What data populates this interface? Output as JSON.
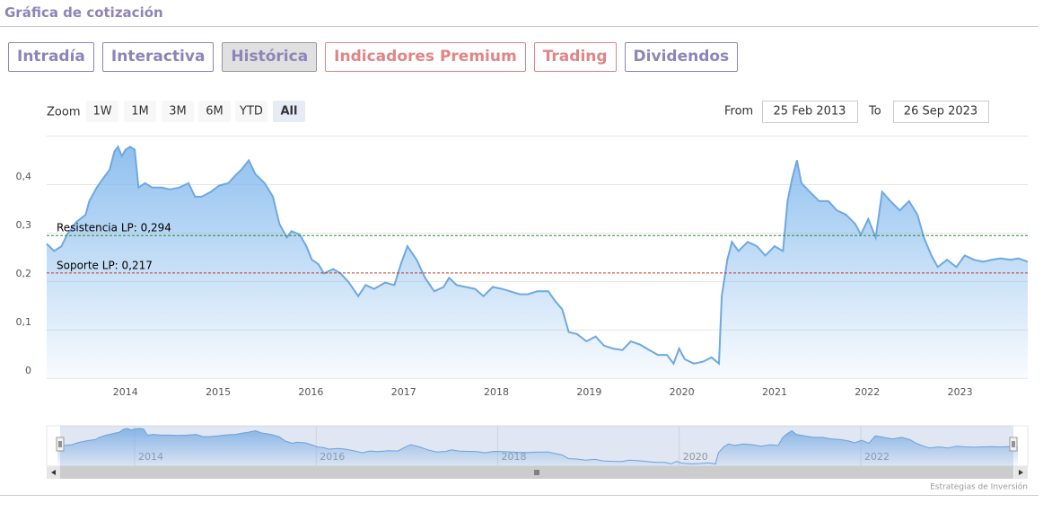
{
  "header": {
    "title": "Gráfica de cotización"
  },
  "tabs": [
    {
      "label": "Intradía",
      "color": "#8e84b8",
      "active": false
    },
    {
      "label": "Interactiva",
      "color": "#8e84b8",
      "active": false
    },
    {
      "label": "Histórica",
      "color": "#8e84b8",
      "active": true
    },
    {
      "label": "Indicadores Premium",
      "color": "#e08585",
      "active": false
    },
    {
      "label": "Trading",
      "color": "#e08585",
      "active": false
    },
    {
      "label": "Dividendos",
      "color": "#8e84b8",
      "active": false
    }
  ],
  "range_selector": {
    "label": "Zoom",
    "buttons": [
      {
        "label": "1W",
        "active": false
      },
      {
        "label": "1M",
        "active": false
      },
      {
        "label": "3M",
        "active": false
      },
      {
        "label": "6M",
        "active": false
      },
      {
        "label": "YTD",
        "active": false
      },
      {
        "label": "All",
        "active": true
      }
    ],
    "from_label": "From",
    "from": "25 Feb 2013",
    "to_label": "To",
    "to": "26 Sep 2023"
  },
  "credit": "Estrategias de Inversión",
  "chart_data": {
    "type": "area",
    "x": [
      2013.15,
      2013.23,
      2013.31,
      2013.37,
      2013.47,
      2013.57,
      2013.61,
      2013.69,
      2013.76,
      2013.83,
      2013.88,
      2013.92,
      2013.96,
      2014.0,
      2014.05,
      2014.1,
      2014.14,
      2014.21,
      2014.29,
      2014.39,
      2014.48,
      2014.58,
      2014.68,
      2014.75,
      2014.82,
      2014.92,
      2015.01,
      2015.11,
      2015.18,
      2015.25,
      2015.33,
      2015.4,
      2015.5,
      2015.59,
      2015.66,
      2015.74,
      2015.79,
      2015.88,
      2015.95,
      2016.01,
      2016.08,
      2016.14,
      2016.24,
      2016.32,
      2016.41,
      2016.51,
      2016.59,
      2016.68,
      2016.8,
      2016.9,
      2016.97,
      2017.04,
      2017.14,
      2017.23,
      2017.33,
      2017.43,
      2017.49,
      2017.57,
      2017.67,
      2017.77,
      2017.86,
      2017.96,
      2018.06,
      2018.15,
      2018.25,
      2018.34,
      2018.44,
      2018.56,
      2018.63,
      2018.71,
      2018.78,
      2018.87,
      2018.97,
      2019.07,
      2019.16,
      2019.26,
      2019.36,
      2019.45,
      2019.55,
      2019.65,
      2019.74,
      2019.84,
      2019.91,
      2019.97,
      2020.03,
      2020.13,
      2020.23,
      2020.32,
      2020.4,
      2020.43,
      2020.49,
      2020.54,
      2020.61,
      2020.71,
      2020.81,
      2020.9,
      2021.0,
      2021.09,
      2021.14,
      2021.19,
      2021.24,
      2021.29,
      2021.38,
      2021.48,
      2021.58,
      2021.67,
      2021.77,
      2021.87,
      2021.93,
      2022.01,
      2022.09,
      2022.16,
      2022.25,
      2022.35,
      2022.45,
      2022.54,
      2022.61,
      2022.69,
      2022.76,
      2022.86,
      2022.96,
      2023.05,
      2023.15,
      2023.25,
      2023.34,
      2023.44,
      2023.54,
      2023.63,
      2023.73
    ],
    "series": [
      {
        "color": "#6fa8e0",
        "values": [
          0.277,
          0.262,
          0.272,
          0.296,
          0.322,
          0.337,
          0.365,
          0.393,
          0.412,
          0.43,
          0.467,
          0.477,
          0.458,
          0.471,
          0.477,
          0.471,
          0.393,
          0.402,
          0.393,
          0.393,
          0.389,
          0.393,
          0.402,
          0.374,
          0.374,
          0.384,
          0.397,
          0.402,
          0.417,
          0.43,
          0.449,
          0.421,
          0.402,
          0.374,
          0.318,
          0.29,
          0.303,
          0.296,
          0.272,
          0.244,
          0.235,
          0.216,
          0.225,
          0.216,
          0.197,
          0.169,
          0.192,
          0.184,
          0.197,
          0.192,
          0.235,
          0.272,
          0.244,
          0.207,
          0.179,
          0.188,
          0.207,
          0.192,
          0.188,
          0.184,
          0.169,
          0.188,
          0.184,
          0.179,
          0.173,
          0.173,
          0.179,
          0.179,
          0.16,
          0.142,
          0.095,
          0.091,
          0.076,
          0.086,
          0.067,
          0.061,
          0.058,
          0.076,
          0.069,
          0.058,
          0.048,
          0.048,
          0.03,
          0.061,
          0.039,
          0.03,
          0.034,
          0.043,
          0.03,
          0.169,
          0.244,
          0.281,
          0.262,
          0.281,
          0.272,
          0.253,
          0.272,
          0.262,
          0.365,
          0.412,
          0.449,
          0.402,
          0.384,
          0.365,
          0.365,
          0.346,
          0.337,
          0.318,
          0.296,
          0.328,
          0.29,
          0.384,
          0.365,
          0.346,
          0.365,
          0.337,
          0.29,
          0.253,
          0.229,
          0.244,
          0.229,
          0.253,
          0.244,
          0.24,
          0.244,
          0.247,
          0.244,
          0.247,
          0.24
        ]
      }
    ],
    "xlim": [
      2013.15,
      2023.73
    ],
    "xticks": [
      2014,
      2015,
      2016,
      2017,
      2018,
      2019,
      2020,
      2021,
      2022,
      2023
    ],
    "ylim": [
      0,
      0.5
    ],
    "yticks": [
      0,
      {
        "value": 0.1,
        "label": "0,1"
      },
      {
        "value": 0.2,
        "label": "0,2"
      },
      {
        "value": 0.3,
        "label": "0,3"
      },
      {
        "value": 0.4,
        "label": "0,4"
      }
    ],
    "grid": true,
    "reference_lines": [
      {
        "label": "Resistencia LP: 0,294",
        "value": 0.294,
        "color": "#2a8a2a"
      },
      {
        "label": "Soporte LP: 0,217",
        "value": 0.217,
        "color": "#c0392b"
      }
    ],
    "navigator_xticks": [
      2014,
      2016,
      2018,
      2020,
      2022
    ]
  }
}
